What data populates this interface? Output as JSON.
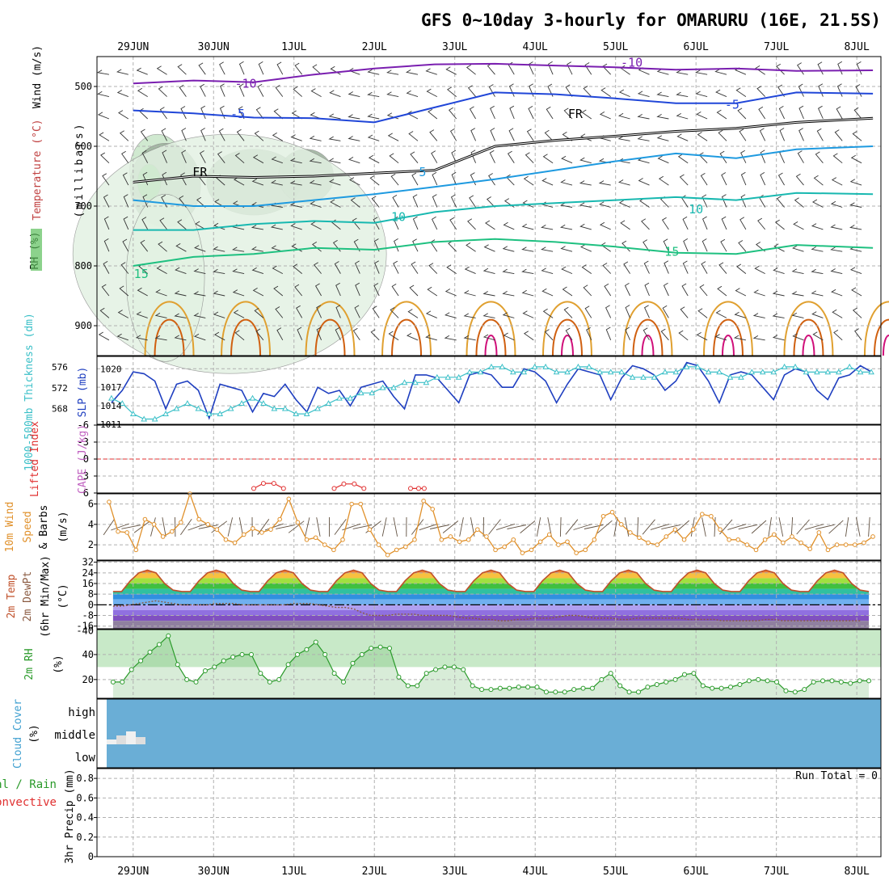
{
  "colors": {
    "grid": "#b0b0b0",
    "frame": "#000000",
    "rh_fill": "#5bbf5b",
    "rh_light": "#e3f2e3",
    "temp_purple": "#7a1fb0",
    "temp_blue": "#2046d8",
    "temp_lblue": "#1e9ae0",
    "temp_teal": "#18b8b0",
    "temp_green": "#1ec080",
    "fr": "#000000",
    "cape_orange": "#e0a030",
    "cape_dark": "#d06010",
    "cape_pink": "#d0107a",
    "slp": "#1f3fc0",
    "thick": "#3cc0c8",
    "li": "#e03030",
    "wind10": "#e0902a",
    "barb": "#605040",
    "tmax": "#c0502a",
    "dew": "#8a5a40",
    "rh2m": "#2a9a2a",
    "cloud": "#6aaed6",
    "cloud_low": "#f0f0f0"
  },
  "chart_data": {
    "type": "meteogram",
    "title": "GFS 0~10day 3-hourly for OMARURU (16E, 21.5S)",
    "days_top": [
      "29JUN",
      "30JUN",
      "1JUL",
      "2JUL",
      "3JUL",
      "4JUL",
      "5JUL",
      "6JUL",
      "7JUL",
      "8JUL"
    ],
    "days_bottom": [
      "29JUN",
      "30JUN",
      "1JUL",
      "2JUL",
      "3JUL",
      "4JUL",
      "5JUL",
      "6JUL",
      "7JUL",
      "8JUL"
    ],
    "upper": {
      "ylabel_parts": [
        "RH (%)",
        "Temperature (°C)",
        "Wind (m/s)"
      ],
      "ylabel_right": "(millibars)",
      "ylabel_vertical": "(millibars)",
      "y_ticks": [
        "500",
        "600",
        "700",
        "800",
        "900"
      ],
      "y_tick_values": [
        500,
        600,
        700,
        800,
        900
      ],
      "ylim": [
        450,
        950
      ],
      "rh_label": "RH (%)",
      "temp_label": "Temperature (°C)",
      "wind_label": "Wind (m/s)",
      "contour_labels": [
        {
          "text": "-10",
          "color": "temp_purple",
          "t": 1.4,
          "p": 502
        },
        {
          "text": "-10",
          "color": "temp_purple",
          "t": 6.2,
          "p": 467
        },
        {
          "text": "-5",
          "color": "temp_blue",
          "t": 1.3,
          "p": 553
        },
        {
          "text": "-5",
          "color": "temp_blue",
          "t": 7.45,
          "p": 537
        },
        {
          "text": "FR",
          "color": "fr",
          "t": 5.5,
          "p": 553
        },
        {
          "text": "FR",
          "color": "fr",
          "t": 0.83,
          "p": 650
        },
        {
          "text": "5",
          "color": "temp_lblue",
          "t": 3.6,
          "p": 650
        },
        {
          "text": "10",
          "color": "temp_teal",
          "t": 3.3,
          "p": 725
        },
        {
          "text": "10",
          "color": "temp_teal",
          "t": 7.0,
          "p": 712
        },
        {
          "text": "15",
          "color": "temp_green",
          "t": 6.7,
          "p": 783
        },
        {
          "text": "15",
          "color": "temp_green",
          "t": 0.1,
          "p": 820
        }
      ],
      "isotherms": [
        {
          "name": "-10",
          "color": "temp_purple",
          "p": [
            495,
            490,
            493,
            480,
            470,
            463,
            462,
            465,
            468,
            472,
            470,
            474,
            473
          ]
        },
        {
          "name": "-5",
          "color": "temp_blue",
          "p": [
            540,
            545,
            552,
            553,
            560,
            535,
            510,
            513,
            520,
            528,
            528,
            510,
            512
          ]
        },
        {
          "name": "FR",
          "color": "fr",
          "p": [
            660,
            650,
            652,
            650,
            645,
            640,
            600,
            590,
            583,
            575,
            570,
            560,
            553
          ]
        },
        {
          "name": "5",
          "color": "temp_lblue",
          "p": [
            690,
            700,
            700,
            690,
            680,
            668,
            655,
            640,
            625,
            612,
            620,
            605,
            600
          ]
        },
        {
          "name": "10",
          "color": "temp_teal",
          "p": [
            740,
            740,
            730,
            725,
            728,
            710,
            700,
            695,
            690,
            685,
            690,
            678,
            680
          ]
        },
        {
          "name": "15",
          "color": "temp_green",
          "p": [
            800,
            785,
            780,
            770,
            773,
            760,
            755,
            760,
            768,
            778,
            780,
            765,
            770
          ]
        }
      ],
      "iso_times": [
        0,
        0.75,
        1.5,
        2.25,
        3.0,
        3.75,
        4.5,
        5.25,
        6.0,
        6.75,
        7.5,
        8.25,
        9.2
      ],
      "rh_blobs": [
        {
          "t": 0.3,
          "p": 640,
          "rt": 0.35,
          "rp": 60,
          "level": "mid"
        },
        {
          "t": 0.4,
          "p": 665,
          "rt": 0.45,
          "rp": 70,
          "level": "dark"
        },
        {
          "t": 0.2,
          "p": 660,
          "rt": 0.15,
          "rp": 30,
          "level": "high"
        },
        {
          "t": 1.5,
          "p": 660,
          "rt": 0.6,
          "rp": 55,
          "level": "dark"
        },
        {
          "t": 2.15,
          "p": 650,
          "rt": 0.35,
          "rp": 45,
          "level": "dark"
        },
        {
          "t": 1.2,
          "p": 780,
          "rt": 2.0,
          "rp": 200,
          "level": "light"
        },
        {
          "t": 0.4,
          "p": 820,
          "rt": 0.5,
          "rp": 140,
          "level": "light"
        }
      ],
      "cape_bumps": [
        0.45,
        1.4,
        2.45,
        3.4,
        4.45,
        5.4,
        6.4,
        7.4,
        8.4,
        9.4
      ]
    },
    "slp_panel": {
      "ylabel_left": "1000-500mb Thickness (dm)",
      "ylabel_right": "SLP (mb)",
      "thick_ticks": [
        "576",
        "572",
        "568"
      ],
      "thick_tick_values": [
        576,
        572,
        568
      ],
      "slp_ticks": [
        "1020",
        "1017",
        "1014",
        "1011"
      ],
      "slp_tick_values": [
        1020,
        1017,
        1014,
        1011
      ],
      "slp_range": [
        1011,
        1022
      ],
      "thick_range": [
        565,
        578
      ],
      "slp": [
        1014.5,
        1016.5,
        1019.5,
        1019.2,
        1018,
        1013.5,
        1017.5,
        1018,
        1016.5,
        1012,
        1017.5,
        1017,
        1016.5,
        1013,
        1016,
        1015.5,
        1017.5,
        1015,
        1013,
        1017,
        1016,
        1016.5,
        1014,
        1017,
        1017.5,
        1018,
        1015.5,
        1013.5,
        1019,
        1019,
        1018.5,
        1016.5,
        1014.5,
        1019,
        1019.5,
        1019,
        1017,
        1017,
        1020,
        1019.5,
        1018,
        1014.5,
        1017.5,
        1020,
        1019.5,
        1019,
        1015,
        1018.5,
        1020.5,
        1020,
        1019,
        1016.5,
        1018,
        1021,
        1020.5,
        1018,
        1014.5,
        1019,
        1019.5,
        1019,
        1017,
        1015,
        1019,
        1020,
        1019.5,
        1016.5,
        1015,
        1018.5,
        1019,
        1020.5,
        1019.5
      ],
      "thick": [
        570,
        569,
        567,
        566,
        566,
        567,
        568,
        569,
        568,
        567,
        567,
        568,
        569,
        570,
        569,
        568,
        568,
        567,
        567,
        568,
        569,
        570,
        570,
        571,
        571,
        572,
        572,
        573,
        573,
        573,
        574,
        574,
        574,
        575,
        575,
        576,
        576,
        575,
        575,
        576,
        576,
        575,
        575,
        576,
        576,
        575,
        575,
        575,
        574,
        574,
        574,
        575,
        575,
        576,
        576,
        575,
        575,
        574,
        574,
        575,
        575,
        575,
        576,
        576,
        575,
        575,
        575,
        575,
        576,
        575,
        575
      ]
    },
    "li_panel": {
      "ylabel_left": "Lifted Index",
      "ylabel_right": "CAPE (J/kg)",
      "ticks": [
        "-6",
        "-3",
        "0",
        "3",
        "6"
      ],
      "tick_values": [
        -6,
        -3,
        0,
        3,
        6
      ],
      "range": [
        -6,
        6
      ],
      "li_segments": [
        {
          "t": [
            1.5,
            1.62,
            1.75,
            1.87
          ],
          "v": [
            5.2,
            4.3,
            4.3,
            5.2
          ]
        },
        {
          "t": [
            2.5,
            2.62,
            2.75,
            2.87
          ],
          "v": [
            5.2,
            4.4,
            4.4,
            5.2
          ]
        },
        {
          "t": [
            3.45,
            3.55,
            3.62
          ],
          "v": [
            5.2,
            5.2,
            5.2
          ]
        }
      ]
    },
    "wind_panel": {
      "ylabel_left": "10m Wind",
      "ylabel_mid": "Speed",
      "ylabel_right": "& Barbs",
      "units": "(m/s)",
      "ticks": [
        "6",
        "4",
        "2"
      ],
      "tick_values": [
        6,
        4,
        2
      ],
      "range": [
        0.5,
        7
      ],
      "speed": [
        6.2,
        3.3,
        3.2,
        1.5,
        4.5,
        4,
        2.8,
        3.3,
        4.2,
        7,
        4.5,
        4,
        3.5,
        2.5,
        2.2,
        3,
        3.6,
        3.2,
        3.5,
        4.5,
        6.5,
        4.2,
        2.5,
        2.7,
        2,
        1.5,
        2.5,
        6,
        6,
        3.5,
        2,
        1,
        1.5,
        1.8,
        2.5,
        6.3,
        5.5,
        2.5,
        2.8,
        2.3,
        2.5,
        3.5,
        2.8,
        1.5,
        1.8,
        2.5,
        1.2,
        1.5,
        2.3,
        3,
        2,
        2.3,
        1.2,
        1.5,
        2.5,
        4.8,
        5.2,
        4,
        3.2,
        2.7,
        2.2,
        2,
        2.8,
        3.5,
        2.5,
        3.5,
        5,
        4.8,
        3.5,
        2.5,
        2.5,
        2,
        1.5,
        2.5,
        3,
        2.2,
        2.8,
        2.2,
        1.6,
        3.2,
        1.5,
        2,
        2,
        2,
        2.2,
        2.8
      ]
    },
    "temp_panel": {
      "ylabel_1": "2m Temp",
      "ylabel_2": "2m DewPt",
      "ylabel_3": "(6hr Min/Max)",
      "units": "(°C)",
      "ticks": [
        "32",
        "24",
        "16",
        "8",
        "0",
        "-8",
        "-16"
      ],
      "tick_values": [
        32,
        24,
        16,
        8,
        0,
        -8,
        -16
      ],
      "tick_extra": "-40",
      "range": [
        -18,
        33
      ],
      "temp": [
        10,
        10,
        18,
        24,
        26,
        24,
        16,
        11,
        10,
        10,
        18,
        24,
        26,
        24,
        16,
        11,
        10,
        10,
        18,
        24,
        26,
        24,
        16,
        11,
        10,
        10,
        18,
        24,
        26,
        24,
        16,
        11,
        10,
        10,
        18,
        24,
        26,
        24,
        16,
        11,
        10,
        10,
        18,
        24,
        26,
        24,
        16,
        11,
        10,
        10,
        18,
        24,
        26,
        24,
        16,
        11,
        10,
        10,
        18,
        24,
        26,
        24,
        16,
        11,
        10,
        10,
        18,
        24,
        26,
        24,
        16,
        11,
        10,
        10,
        18,
        24,
        26,
        24,
        16,
        11,
        10,
        10,
        18,
        24,
        26,
        24,
        16,
        11,
        10
      ],
      "dew": [
        -1,
        -1,
        0,
        1,
        2,
        3,
        2,
        1,
        0,
        0,
        0,
        0,
        1,
        1,
        1,
        0,
        0,
        0,
        0,
        0,
        0,
        1,
        1,
        1,
        0,
        -1,
        -2,
        -2,
        -3,
        -6,
        -8,
        -8,
        -8,
        -7,
        -7,
        -7,
        -8,
        -8,
        -8,
        -8,
        -9,
        -10,
        -10,
        -11,
        -11,
        -12,
        -12,
        -11,
        -11,
        -10,
        -10,
        -10,
        -9,
        -8,
        -8,
        -9,
        -10,
        -10,
        -10,
        -11,
        -11,
        -10,
        -10,
        -10,
        -10,
        -10,
        -10,
        -11,
        -11,
        -11,
        -11,
        -12,
        -12,
        -12,
        -12,
        -12,
        -11,
        -11,
        -12,
        -12,
        -12,
        -12,
        -12,
        -12,
        -12,
        -12,
        -12,
        -12
      ]
    },
    "rh_panel": {
      "ylabel": "2m RH",
      "units": "(%)",
      "ticks": [
        "40",
        "20"
      ],
      "tick_values": [
        40,
        20
      ],
      "range": [
        5,
        60
      ],
      "rh": [
        18,
        18,
        28,
        35,
        42,
        48,
        55,
        32,
        20,
        18,
        27,
        30,
        35,
        38,
        40,
        40,
        25,
        18,
        20,
        32,
        40,
        44,
        50,
        40,
        25,
        18,
        33,
        40,
        45,
        46,
        45,
        22,
        15,
        15,
        25,
        28,
        30,
        30,
        28,
        15,
        12,
        12,
        13,
        13,
        14,
        14,
        14,
        10,
        10,
        10,
        12,
        13,
        13,
        20,
        25,
        15,
        10,
        10,
        14,
        16,
        18,
        20,
        24,
        25,
        15,
        13,
        13,
        14,
        16,
        19,
        20,
        19,
        18,
        11,
        10,
        12,
        18,
        19,
        19,
        18,
        17,
        19,
        19
      ]
    },
    "cloud_panel": {
      "ylabel": "Cloud Cover",
      "units": "(%)",
      "levels": [
        "high",
        "middle",
        "low"
      ]
    },
    "precip_panel": {
      "ylabel_1": "Total / Rain",
      "ylabel_2": "Convective",
      "ylabel_3": "3hr Precip (mm)",
      "run_total": "Run Total = 0",
      "ticks": [
        "0.8",
        "0.6",
        "0.4",
        "0.2",
        "0"
      ],
      "tick_values": [
        0.8,
        0.6,
        0.4,
        0.2,
        0
      ],
      "range": [
        0,
        0.9
      ]
    }
  }
}
